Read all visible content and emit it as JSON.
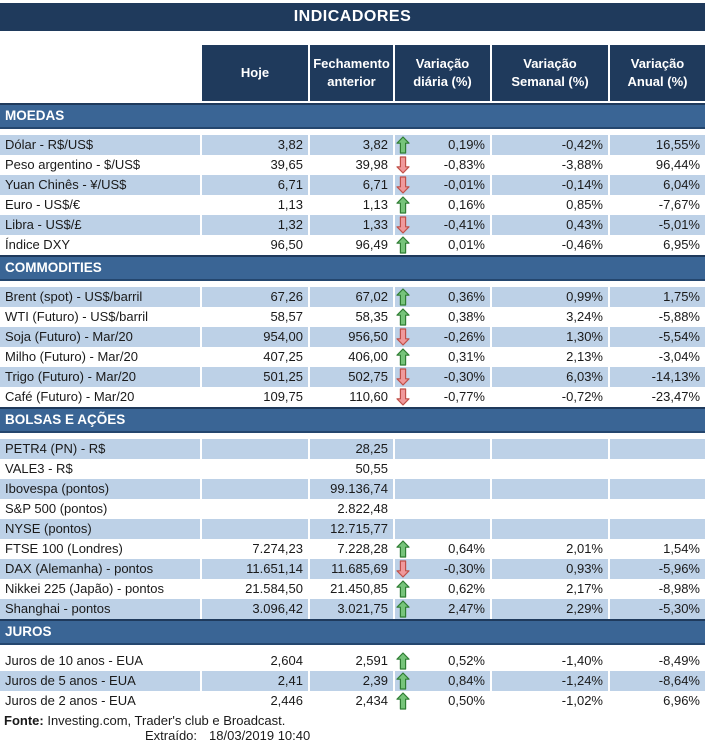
{
  "title": "INDICADORES",
  "columns": [
    "Hoje",
    "Fechamento anterior",
    "Variação diária (%)",
    "Variação Semanal (%)",
    "Variação Anual (%)"
  ],
  "sections": [
    {
      "name": "MOEDAS",
      "rows": [
        {
          "label": "Dólar - R$/US$",
          "hoje": "3,82",
          "fechamento": "3,82",
          "trend": "up",
          "diaria": "0,19%",
          "semanal": "-0,42%",
          "anual": "16,55%"
        },
        {
          "label": "Peso argentino - $/US$",
          "hoje": "39,65",
          "fechamento": "39,98",
          "trend": "down",
          "diaria": "-0,83%",
          "semanal": "-3,88%",
          "anual": "96,44%"
        },
        {
          "label": "Yuan Chinês - ¥/US$",
          "hoje": "6,71",
          "fechamento": "6,71",
          "trend": "down",
          "diaria": "-0,01%",
          "semanal": "-0,14%",
          "anual": "6,04%"
        },
        {
          "label": "Euro - US$/€",
          "hoje": "1,13",
          "fechamento": "1,13",
          "trend": "up",
          "diaria": "0,16%",
          "semanal": "0,85%",
          "anual": "-7,67%"
        },
        {
          "label": "Libra - US$/£",
          "hoje": "1,32",
          "fechamento": "1,33",
          "trend": "down",
          "diaria": "-0,41%",
          "semanal": "0,43%",
          "anual": "-5,01%"
        },
        {
          "label": "Índice DXY",
          "hoje": "96,50",
          "fechamento": "96,49",
          "trend": "up",
          "diaria": "0,01%",
          "semanal": "-0,46%",
          "anual": "6,95%"
        }
      ]
    },
    {
      "name": "COMMODITIES",
      "rows": [
        {
          "label": "Brent (spot) - US$/barril",
          "hoje": "67,26",
          "fechamento": "67,02",
          "trend": "up",
          "diaria": "0,36%",
          "semanal": "0,99%",
          "anual": "1,75%"
        },
        {
          "label": "WTI (Futuro) - US$/barril",
          "hoje": "58,57",
          "fechamento": "58,35",
          "trend": "up",
          "diaria": "0,38%",
          "semanal": "3,24%",
          "anual": "-5,88%"
        },
        {
          "label": "Soja (Futuro) - Mar/20",
          "hoje": "954,00",
          "fechamento": "956,50",
          "trend": "down",
          "diaria": "-0,26%",
          "semanal": "1,30%",
          "anual": "-5,54%"
        },
        {
          "label": "Milho (Futuro) - Mar/20",
          "hoje": "407,25",
          "fechamento": "406,00",
          "trend": "up",
          "diaria": "0,31%",
          "semanal": "2,13%",
          "anual": "-3,04%"
        },
        {
          "label": "Trigo (Futuro) - Mar/20",
          "hoje": "501,25",
          "fechamento": "502,75",
          "trend": "down",
          "diaria": "-0,30%",
          "semanal": "6,03%",
          "anual": "-14,13%"
        },
        {
          "label": "Café (Futuro) - Mar/20",
          "hoje": "109,75",
          "fechamento": "110,60",
          "trend": "down",
          "diaria": "-0,77%",
          "semanal": "-0,72%",
          "anual": "-23,47%"
        }
      ]
    },
    {
      "name": "BOLSAS E AÇÕES",
      "rows": [
        {
          "label": "PETR4 (PN) - R$",
          "hoje": "",
          "fechamento": "28,25",
          "trend": null,
          "diaria": "",
          "semanal": "",
          "anual": ""
        },
        {
          "label": "VALE3 - R$",
          "hoje": "",
          "fechamento": "50,55",
          "trend": null,
          "diaria": "",
          "semanal": "",
          "anual": ""
        },
        {
          "label": "Ibovespa (pontos)",
          "hoje": "",
          "fechamento": "99.136,74",
          "trend": null,
          "diaria": "",
          "semanal": "",
          "anual": ""
        },
        {
          "label": "S&P 500 (pontos)",
          "hoje": "",
          "fechamento": "2.822,48",
          "trend": null,
          "diaria": "",
          "semanal": "",
          "anual": ""
        },
        {
          "label": "NYSE (pontos)",
          "hoje": "",
          "fechamento": "12.715,77",
          "trend": null,
          "diaria": "",
          "semanal": "",
          "anual": ""
        },
        {
          "label": "FTSE 100 (Londres)",
          "hoje": "7.274,23",
          "fechamento": "7.228,28",
          "trend": "up",
          "diaria": "0,64%",
          "semanal": "2,01%",
          "anual": "1,54%"
        },
        {
          "label": "DAX (Alemanha) - pontos",
          "hoje": "11.651,14",
          "fechamento": "11.685,69",
          "trend": "down",
          "diaria": "-0,30%",
          "semanal": "0,93%",
          "anual": "-5,96%"
        },
        {
          "label": "Nikkei 225 (Japão) - pontos",
          "hoje": "21.584,50",
          "fechamento": "21.450,85",
          "trend": "up",
          "diaria": "0,62%",
          "semanal": "2,17%",
          "anual": "-8,98%"
        },
        {
          "label": "Shanghai - pontos",
          "hoje": "3.096,42",
          "fechamento": "3.021,75",
          "trend": "up",
          "diaria": "2,47%",
          "semanal": "2,29%",
          "anual": "-5,30%"
        }
      ]
    },
    {
      "name": "JUROS",
      "rows": [
        {
          "label": "Juros de 10 anos - EUA",
          "hoje": "2,604",
          "fechamento": "2,591",
          "trend": "up",
          "diaria": "0,52%",
          "semanal": "-1,40%",
          "anual": "-8,49%"
        },
        {
          "label": "Juros de 5 anos - EUA",
          "hoje": "2,41",
          "fechamento": "2,39",
          "trend": "up",
          "diaria": "0,84%",
          "semanal": "-1,24%",
          "anual": "-8,64%"
        },
        {
          "label": "Juros de 2 anos - EUA",
          "hoje": "2,446",
          "fechamento": "2,434",
          "trend": "up",
          "diaria": "0,50%",
          "semanal": "-1,02%",
          "anual": "6,96%"
        }
      ]
    }
  ],
  "footer": {
    "source_label": "Fonte:",
    "source_text": "Investing.com, Trader's club e Broadcast.",
    "extracted_label": "Extraído:",
    "extracted_value": "18/03/2019 10:40"
  },
  "icons": {
    "up": "up-arrow-icon",
    "down": "down-arrow-icon"
  },
  "colors": {
    "header_navy": "#1F3A5C",
    "section_blue": "#3A6595",
    "row_light_blue": "#BDD1E7",
    "row_white": "#FFFFFF",
    "arrow_up_fill": "#76C47A",
    "arrow_up_stroke": "#2F7D33",
    "arrow_down_fill": "#F0999B",
    "arrow_down_stroke": "#C05048"
  }
}
